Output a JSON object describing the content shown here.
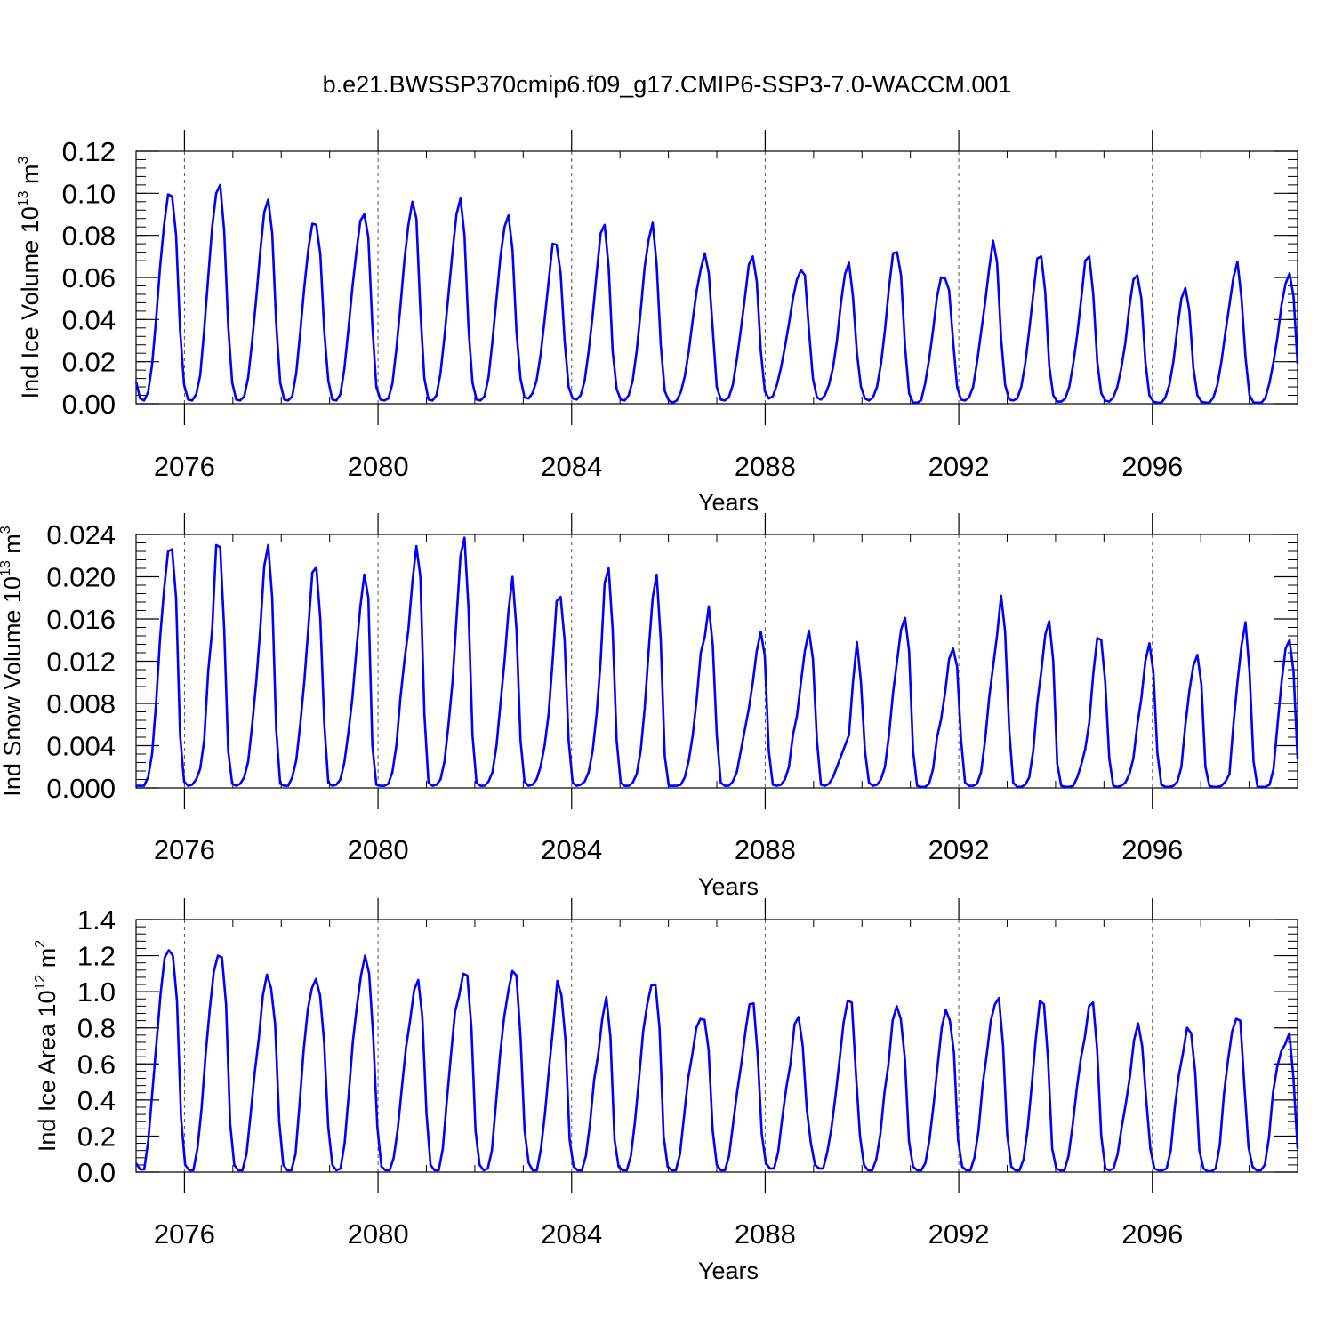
{
  "title": "b.e21.BWSSP370cmip6.f09_g17.CMIP6-SSP3-7.0-WACCM.001",
  "colors": {
    "line": "#0000ff",
    "axis": "#000000",
    "grid": "#555555"
  },
  "chart_data": [
    {
      "type": "line",
      "ylabel": {
        "prefix": "Ind Ice Volume 10",
        "exp": "13",
        "unit": " m",
        "unit_exp": "3"
      },
      "xlabel": "Years",
      "xlim": [
        2075,
        2099
      ],
      "ylim": [
        0.0,
        0.12
      ],
      "yticks": [
        "0.00",
        "0.02",
        "0.04",
        "0.06",
        "0.08",
        "0.10",
        "0.12"
      ],
      "xticks": [
        "2076",
        "2080",
        "2084",
        "2088",
        "2092",
        "2096"
      ],
      "grid": "vertical dashed at major x ticks",
      "series": [
        {
          "values": [
            0.0105,
            0.0025,
            0.0015,
            0.0055,
            0.0185,
            0.04,
            0.065,
            0.085,
            0.0995,
            0.0985,
            0.08,
            0.035,
            0.009,
            0.002,
            0.0015,
            0.0045,
            0.0135,
            0.035,
            0.06,
            0.084,
            0.1,
            0.104,
            0.082,
            0.037,
            0.01,
            0.002,
            0.0015,
            0.0035,
            0.0125,
            0.03,
            0.05,
            0.072,
            0.091,
            0.097,
            0.081,
            0.038,
            0.01,
            0.002,
            0.0015,
            0.0035,
            0.0145,
            0.034,
            0.055,
            0.073,
            0.0855,
            0.085,
            0.071,
            0.034,
            0.011,
            0.002,
            0.0015,
            0.0045,
            0.0165,
            0.035,
            0.055,
            0.072,
            0.087,
            0.09,
            0.079,
            0.037,
            0.008,
            0.002,
            0.0015,
            0.0025,
            0.0095,
            0.026,
            0.046,
            0.068,
            0.085,
            0.096,
            0.088,
            0.044,
            0.012,
            0.002,
            0.0015,
            0.004,
            0.0145,
            0.032,
            0.052,
            0.072,
            0.09,
            0.0975,
            0.08,
            0.036,
            0.01,
            0.002,
            0.0015,
            0.0035,
            0.0125,
            0.03,
            0.05,
            0.07,
            0.084,
            0.0895,
            0.073,
            0.034,
            0.012,
            0.003,
            0.0025,
            0.005,
            0.011,
            0.023,
            0.04,
            0.058,
            0.076,
            0.0755,
            0.062,
            0.03,
            0.008,
            0.0025,
            0.002,
            0.004,
            0.011,
            0.025,
            0.042,
            0.062,
            0.081,
            0.085,
            0.065,
            0.025,
            0.007,
            0.002,
            0.0015,
            0.004,
            0.011,
            0.025,
            0.044,
            0.065,
            0.078,
            0.086,
            0.066,
            0.028,
            0.006,
            0.0015,
            0.0005,
            0.0015,
            0.0055,
            0.013,
            0.025,
            0.04,
            0.054,
            0.064,
            0.0715,
            0.062,
            0.035,
            0.008,
            0.002,
            0.0015,
            0.003,
            0.009,
            0.021,
            0.035,
            0.05,
            0.066,
            0.07,
            0.058,
            0.025,
            0.006,
            0.0025,
            0.0035,
            0.009,
            0.017,
            0.027,
            0.038,
            0.05,
            0.059,
            0.0635,
            0.061,
            0.035,
            0.012,
            0.003,
            0.002,
            0.004,
            0.009,
            0.017,
            0.03,
            0.048,
            0.0615,
            0.067,
            0.051,
            0.024,
            0.008,
            0.0025,
            0.0015,
            0.003,
            0.008,
            0.019,
            0.035,
            0.055,
            0.0715,
            0.072,
            0.061,
            0.027,
            0.005,
            0.0005,
            0.0005,
            0.0015,
            0.0095,
            0.021,
            0.035,
            0.051,
            0.06,
            0.0595,
            0.054,
            0.03,
            0.008,
            0.002,
            0.0015,
            0.003,
            0.008,
            0.02,
            0.034,
            0.048,
            0.064,
            0.0775,
            0.067,
            0.031,
            0.009,
            0.002,
            0.0015,
            0.0025,
            0.008,
            0.019,
            0.035,
            0.052,
            0.069,
            0.07,
            0.053,
            0.018,
            0.004,
            0.001,
            0.001,
            0.0025,
            0.008,
            0.019,
            0.033,
            0.05,
            0.068,
            0.07,
            0.052,
            0.02,
            0.005,
            0.0015,
            0.001,
            0.003,
            0.008,
            0.017,
            0.029,
            0.046,
            0.059,
            0.061,
            0.05,
            0.02,
            0.004,
            0.001,
            0.0005,
            0.0005,
            0.003,
            0.009,
            0.02,
            0.036,
            0.05,
            0.055,
            0.044,
            0.017,
            0.004,
            0.001,
            0.0005,
            0.0005,
            0.003,
            0.009,
            0.02,
            0.034,
            0.047,
            0.06,
            0.0675,
            0.05,
            0.022,
            0.004,
            0.0005,
            0.0005,
            0.0005,
            0.003,
            0.01,
            0.02,
            0.032,
            0.047,
            0.057,
            0.062,
            0.051,
            0.019
          ]
        }
      ]
    },
    {
      "type": "line",
      "ylabel": {
        "prefix": "Ind Snow Volume 10",
        "exp": "13",
        "unit": " m",
        "unit_exp": "3"
      },
      "xlabel": "Years",
      "xlim": [
        2075,
        2099
      ],
      "ylim": [
        0.0,
        0.024
      ],
      "yticks": [
        "0.000",
        "0.004",
        "0.008",
        "0.012",
        "0.016",
        "0.020",
        "0.024"
      ],
      "xticks": [
        "2076",
        "2080",
        "2084",
        "2088",
        "2092",
        "2096"
      ],
      "grid": "vertical dashed at major x ticks",
      "series": [
        {
          "values": [
            0.0002,
            0.0002,
            0.0002,
            0.001,
            0.0032,
            0.008,
            0.0142,
            0.0188,
            0.0224,
            0.0226,
            0.018,
            0.005,
            0.0006,
            0.0002,
            0.0003,
            0.0008,
            0.0018,
            0.0045,
            0.011,
            0.015,
            0.023,
            0.0228,
            0.015,
            0.0035,
            0.0004,
            0.0002,
            0.0004,
            0.001,
            0.0025,
            0.006,
            0.01,
            0.015,
            0.021,
            0.023,
            0.018,
            0.0055,
            0.0004,
            0.0002,
            0.0002,
            0.001,
            0.0026,
            0.006,
            0.01,
            0.015,
            0.0204,
            0.0209,
            0.016,
            0.006,
            0.0005,
            0.0002,
            0.0003,
            0.0008,
            0.0024,
            0.0052,
            0.0085,
            0.013,
            0.0172,
            0.0202,
            0.018,
            0.004,
            0.0003,
            0.0002,
            0.0002,
            0.0004,
            0.0015,
            0.004,
            0.0085,
            0.012,
            0.015,
            0.0195,
            0.0229,
            0.02,
            0.007,
            0.0005,
            0.0002,
            0.0003,
            0.0008,
            0.0025,
            0.006,
            0.01,
            0.016,
            0.022,
            0.0237,
            0.017,
            0.005,
            0.0005,
            0.0002,
            0.0002,
            0.0006,
            0.0015,
            0.004,
            0.008,
            0.012,
            0.0168,
            0.02,
            0.015,
            0.0045,
            0.0006,
            0.0002,
            0.0003,
            0.0008,
            0.002,
            0.004,
            0.007,
            0.012,
            0.0177,
            0.0181,
            0.014,
            0.0045,
            0.0005,
            0.0002,
            0.0003,
            0.0006,
            0.0015,
            0.0035,
            0.007,
            0.012,
            0.0194,
            0.0208,
            0.015,
            0.0045,
            0.0005,
            0.0002,
            0.0002,
            0.0005,
            0.0013,
            0.0035,
            0.0075,
            0.013,
            0.018,
            0.0202,
            0.014,
            0.003,
            0.0002,
            0.0002,
            0.0002,
            0.0003,
            0.001,
            0.0026,
            0.005,
            0.0085,
            0.0128,
            0.0143,
            0.0172,
            0.0135,
            0.005,
            0.0005,
            0.0002,
            0.0002,
            0.0006,
            0.0015,
            0.0035,
            0.0055,
            0.0075,
            0.01,
            0.013,
            0.0148,
            0.0125,
            0.0035,
            0.0003,
            0.0002,
            0.0003,
            0.0008,
            0.002,
            0.005,
            0.0068,
            0.01,
            0.013,
            0.0149,
            0.0122,
            0.0045,
            0.0003,
            0.0002,
            0.0004,
            0.001,
            0.002,
            0.003,
            0.004,
            0.005,
            0.01,
            0.0138,
            0.01,
            0.0035,
            0.0005,
            0.0002,
            0.0003,
            0.0008,
            0.002,
            0.005,
            0.009,
            0.012,
            0.015,
            0.0161,
            0.013,
            0.0035,
            0.0002,
            0.0001,
            0.0001,
            0.0004,
            0.0018,
            0.0048,
            0.0065,
            0.009,
            0.0122,
            0.0132,
            0.0115,
            0.0045,
            0.0005,
            0.0002,
            0.0002,
            0.0004,
            0.0015,
            0.0045,
            0.0085,
            0.0115,
            0.0145,
            0.0182,
            0.0148,
            0.0055,
            0.0005,
            0.0001,
            0.0001,
            0.0003,
            0.001,
            0.0035,
            0.008,
            0.011,
            0.0145,
            0.0158,
            0.012,
            0.0023,
            0.0002,
            0.0001,
            0.0001,
            0.0002,
            0.001,
            0.0022,
            0.0037,
            0.0062,
            0.0108,
            0.0142,
            0.014,
            0.01,
            0.0028,
            0.0002,
            0.0001,
            0.0002,
            0.0005,
            0.0013,
            0.0028,
            0.006,
            0.0085,
            0.012,
            0.0137,
            0.011,
            0.0033,
            0.0003,
            0.0001,
            0.0001,
            0.0002,
            0.0006,
            0.002,
            0.006,
            0.0092,
            0.0116,
            0.0126,
            0.0098,
            0.002,
            0.0002,
            0.0001,
            0.0001,
            0.0002,
            0.0006,
            0.0013,
            0.006,
            0.01,
            0.0135,
            0.0157,
            0.011,
            0.0025,
            0.0001,
            0.0001,
            0.0001,
            0.0003,
            0.0018,
            0.006,
            0.01,
            0.0132,
            0.014,
            0.011,
            0.0028
          ]
        }
      ]
    },
    {
      "type": "line",
      "ylabel": {
        "prefix": "Ind Ice Area 10",
        "exp": "12",
        "unit": " m",
        "unit_exp": "2"
      },
      "xlabel": "Years",
      "xlim": [
        2075,
        2099
      ],
      "ylim": [
        0.0,
        1.4
      ],
      "yticks": [
        "0.0",
        "0.2",
        "0.4",
        "0.6",
        "0.8",
        "1.0",
        "1.2",
        "1.4"
      ],
      "xticks": [
        "2076",
        "2080",
        "2084",
        "2088",
        "2092",
        "2096"
      ],
      "grid": "vertical dashed at major x ticks",
      "series": [
        {
          "values": [
            0.05,
            0.015,
            0.015,
            0.18,
            0.45,
            0.72,
            0.99,
            1.19,
            1.23,
            1.2,
            0.95,
            0.3,
            0.04,
            0.01,
            0.01,
            0.13,
            0.35,
            0.65,
            0.9,
            1.11,
            1.2,
            1.19,
            0.93,
            0.27,
            0.04,
            0.01,
            0.01,
            0.1,
            0.32,
            0.55,
            0.74,
            0.98,
            1.095,
            1.02,
            0.82,
            0.28,
            0.04,
            0.01,
            0.01,
            0.1,
            0.38,
            0.68,
            0.9,
            1.02,
            1.07,
            0.98,
            0.72,
            0.25,
            0.04,
            0.01,
            0.02,
            0.16,
            0.43,
            0.72,
            0.92,
            1.09,
            1.2,
            1.1,
            0.75,
            0.25,
            0.03,
            0.01,
            0.01,
            0.08,
            0.24,
            0.47,
            0.69,
            0.84,
            1.01,
            1.065,
            0.86,
            0.33,
            0.04,
            0.01,
            0.01,
            0.13,
            0.4,
            0.65,
            0.89,
            0.98,
            1.1,
            1.09,
            0.8,
            0.23,
            0.04,
            0.01,
            0.02,
            0.12,
            0.38,
            0.65,
            0.86,
            1.0,
            1.115,
            1.09,
            0.75,
            0.23,
            0.05,
            0.01,
            0.01,
            0.13,
            0.33,
            0.58,
            0.81,
            1.06,
            0.98,
            0.73,
            0.18,
            0.03,
            0.01,
            0.01,
            0.09,
            0.27,
            0.51,
            0.65,
            0.85,
            0.97,
            0.75,
            0.18,
            0.03,
            0.01,
            0.01,
            0.09,
            0.28,
            0.52,
            0.78,
            0.93,
            1.035,
            1.04,
            0.8,
            0.2,
            0.03,
            0.01,
            0.01,
            0.1,
            0.31,
            0.52,
            0.65,
            0.8,
            0.85,
            0.845,
            0.68,
            0.23,
            0.04,
            0.01,
            0.01,
            0.09,
            0.27,
            0.45,
            0.6,
            0.78,
            0.93,
            0.935,
            0.65,
            0.21,
            0.05,
            0.02,
            0.02,
            0.11,
            0.3,
            0.47,
            0.6,
            0.82,
            0.86,
            0.7,
            0.35,
            0.16,
            0.04,
            0.02,
            0.02,
            0.11,
            0.24,
            0.42,
            0.62,
            0.83,
            0.95,
            0.94,
            0.55,
            0.2,
            0.04,
            0.01,
            0.01,
            0.07,
            0.21,
            0.44,
            0.6,
            0.84,
            0.92,
            0.85,
            0.63,
            0.17,
            0.03,
            0.01,
            0.01,
            0.05,
            0.18,
            0.37,
            0.59,
            0.8,
            0.9,
            0.84,
            0.66,
            0.18,
            0.03,
            0.01,
            0.01,
            0.08,
            0.23,
            0.48,
            0.65,
            0.84,
            0.93,
            0.965,
            0.7,
            0.21,
            0.03,
            0.01,
            0.01,
            0.07,
            0.24,
            0.48,
            0.74,
            0.95,
            0.93,
            0.62,
            0.13,
            0.02,
            0.01,
            0.01,
            0.09,
            0.26,
            0.46,
            0.63,
            0.75,
            0.92,
            0.94,
            0.68,
            0.2,
            0.02,
            0.01,
            0.02,
            0.1,
            0.25,
            0.38,
            0.53,
            0.73,
            0.825,
            0.7,
            0.4,
            0.13,
            0.02,
            0.01,
            0.01,
            0.02,
            0.12,
            0.36,
            0.54,
            0.66,
            0.8,
            0.77,
            0.55,
            0.12,
            0.02,
            0.005,
            0.005,
            0.02,
            0.15,
            0.43,
            0.62,
            0.78,
            0.85,
            0.84,
            0.48,
            0.14,
            0.03,
            0.01,
            0.01,
            0.04,
            0.19,
            0.44,
            0.58,
            0.67,
            0.71,
            0.77,
            0.52,
            0.13
          ]
        }
      ]
    }
  ]
}
